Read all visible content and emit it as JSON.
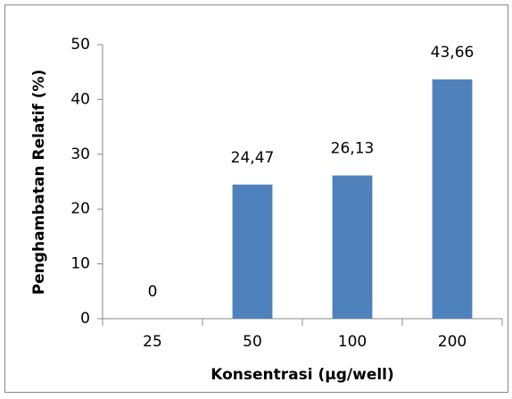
{
  "chart_data": {
    "type": "bar",
    "x_label": "Konsentrasi (µg/well)",
    "y_label": "Penghambatan Relatif (%)",
    "categories": [
      "25",
      "50",
      "100",
      "200"
    ],
    "values": [
      0,
      24.47,
      26.13,
      43.66
    ],
    "value_labels": [
      "0",
      "24,47",
      "26,13",
      "43,66"
    ],
    "color": "#4f81bd",
    "ylim": [
      0,
      50
    ],
    "yticks": [
      0,
      10,
      20,
      30,
      40,
      50
    ],
    "grid": false
  }
}
